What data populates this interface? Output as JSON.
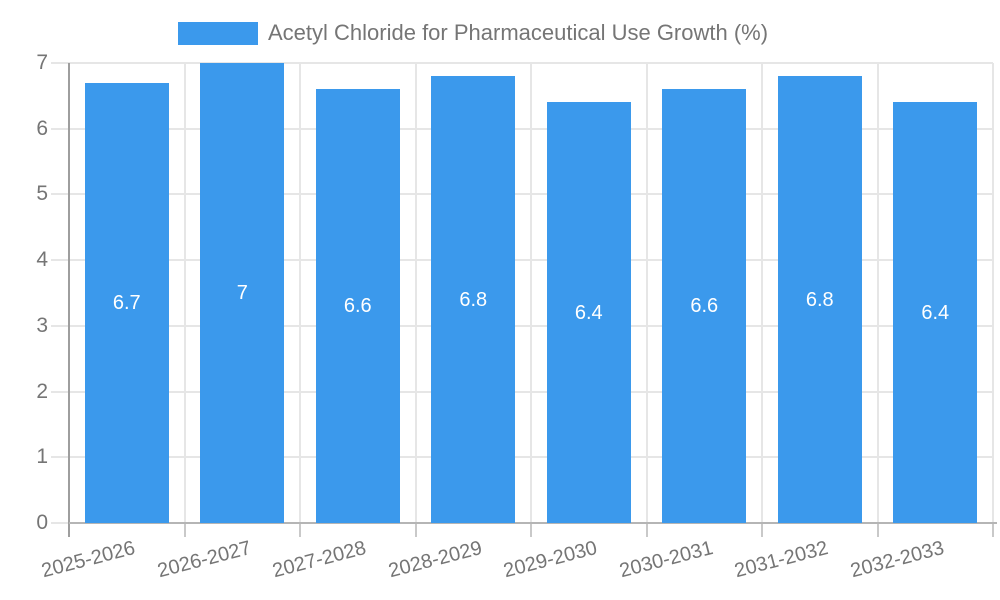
{
  "page": {
    "background_color": "#ffffff"
  },
  "legend": {
    "label": "Acetyl Chloride for Pharmaceutical Use Growth (%)",
    "swatch_color": "#3B99EC",
    "position": "top"
  },
  "colors": {
    "bar": "#3B99EC",
    "axis_text": "#757575",
    "legend_text": "#757575",
    "gridline": "#e6e6e6",
    "y_axis_line": "#9e9e9e",
    "x_axis_line": "#b5b5b5",
    "data_label": "#ffffff"
  },
  "chart_data": {
    "type": "bar",
    "title": "Acetyl Chloride for Pharmaceutical Use Growth (%)",
    "categories": [
      "2025-2026",
      "2026-2027",
      "2027-2028",
      "2028-2029",
      "2029-2030",
      "2030-2031",
      "2031-2032",
      "2032-2033"
    ],
    "series": [
      {
        "name": "Acetyl Chloride for Pharmaceutical Use Growth (%)",
        "values": [
          6.7,
          7,
          6.6,
          6.8,
          6.4,
          6.6,
          6.8,
          6.4
        ],
        "data_labels": [
          "6.7",
          "7",
          "6.6",
          "6.8",
          "6.4",
          "6.6",
          "6.8",
          "6.4"
        ],
        "color": "#3B99EC"
      }
    ],
    "xlabel": "",
    "ylabel": "",
    "ylim": [
      0,
      7
    ],
    "yticks": [
      "0",
      "1",
      "2",
      "3",
      "4",
      "5",
      "6",
      "7"
    ],
    "grid": true,
    "legend_position": "top",
    "x_label_rotation_deg": -14.5,
    "data_label_position": "center-of-bar"
  }
}
